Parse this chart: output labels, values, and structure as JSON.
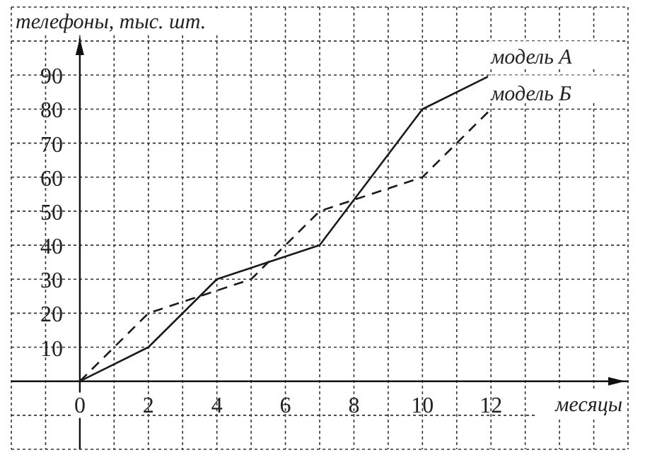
{
  "chart_data": {
    "type": "line",
    "xlabel": "месяцы",
    "ylabel": "телефоны, тыс. шт.",
    "series": [
      {
        "name": "модель А",
        "color": "#1a1a1a",
        "line_style": "solid",
        "x": [
          0,
          2,
          4,
          7,
          10,
          12
        ],
        "values": [
          0,
          10,
          30,
          40,
          80,
          90
        ]
      },
      {
        "name": "модель Б",
        "color": "#1a1a1a",
        "line_style": "dashed",
        "x": [
          0,
          2,
          5,
          7,
          10,
          12
        ],
        "values": [
          0,
          20,
          30,
          50,
          60,
          80
        ]
      }
    ],
    "xlim": [
      -2,
      16
    ],
    "ylim": [
      -20,
      110
    ],
    "xticks": [
      {
        "value": -2,
        "label": null
      },
      {
        "value": -1,
        "label": null
      },
      0,
      {
        "value": 1,
        "label": null
      },
      2,
      {
        "value": 3,
        "label": null
      },
      4,
      {
        "value": 5,
        "label": null
      },
      6,
      {
        "value": 7,
        "label": null
      },
      8,
      {
        "value": 9,
        "label": null
      },
      10,
      {
        "value": 11,
        "label": null
      },
      12,
      {
        "value": 13,
        "label": null
      },
      {
        "value": 14,
        "label": null
      },
      {
        "value": 15,
        "label": null
      },
      {
        "value": 16,
        "label": null
      }
    ],
    "yticks": [
      {
        "value": -20,
        "label": null
      },
      {
        "value": -10,
        "label": null
      },
      {
        "value": 0,
        "label": null
      },
      10,
      20,
      30,
      40,
      50,
      60,
      70,
      80,
      90,
      {
        "value": 100,
        "label": null
      },
      {
        "value": 110,
        "label": null
      }
    ],
    "grid": true,
    "marker": "none"
  }
}
